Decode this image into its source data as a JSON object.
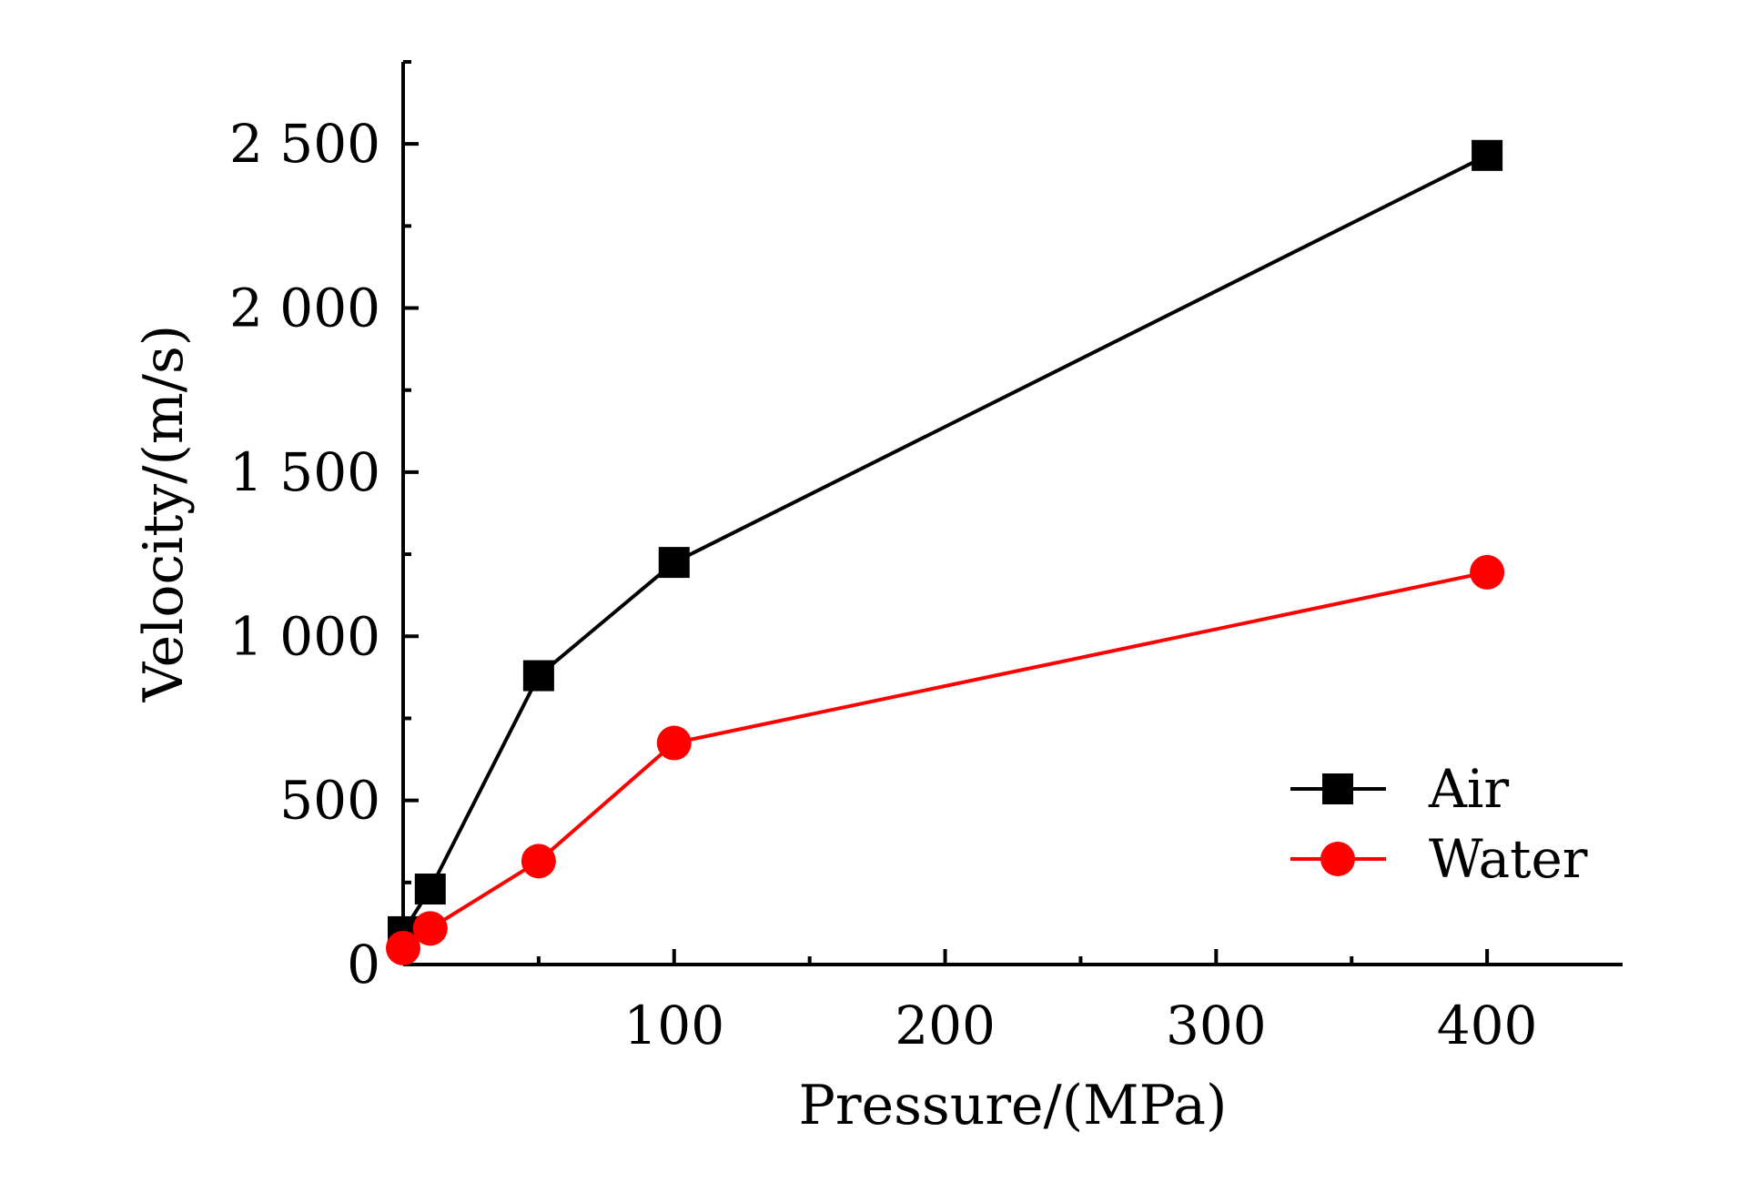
{
  "chart_data": {
    "type": "line",
    "title": "",
    "xlabel": "Pressure/(MPa)",
    "ylabel": "Velocity/(m/s)",
    "xlim": [
      0,
      450
    ],
    "ylim": [
      0,
      2750
    ],
    "x_ticks": [
      {
        "value": 100,
        "label": "100"
      },
      {
        "value": 200,
        "label": "200"
      },
      {
        "value": 300,
        "label": "300"
      },
      {
        "value": 400,
        "label": "400"
      }
    ],
    "x_minor_ticks": [
      50,
      150,
      250,
      350
    ],
    "y_ticks": [
      {
        "value": 0,
        "label": "0"
      },
      {
        "value": 500,
        "label": "500"
      },
      {
        "value": 1000,
        "label": "1 000"
      },
      {
        "value": 1500,
        "label": "1 500"
      },
      {
        "value": 2000,
        "label": "2 000"
      },
      {
        "value": 2500,
        "label": "2 500"
      }
    ],
    "y_minor_ticks": [
      250,
      750,
      1250,
      1750,
      2250,
      2750
    ],
    "grid": false,
    "legend_position": "lower-right",
    "series": [
      {
        "name": "Air",
        "color": "#000000",
        "marker": "square",
        "x": [
          0,
          10,
          50,
          100,
          400
        ],
        "y": [
          100,
          230,
          880,
          1225,
          2465
        ]
      },
      {
        "name": "Water",
        "color": "#ff0000",
        "marker": "circle",
        "x": [
          0,
          10,
          50,
          100,
          400
        ],
        "y": [
          50,
          110,
          315,
          675,
          1195
        ]
      }
    ]
  }
}
